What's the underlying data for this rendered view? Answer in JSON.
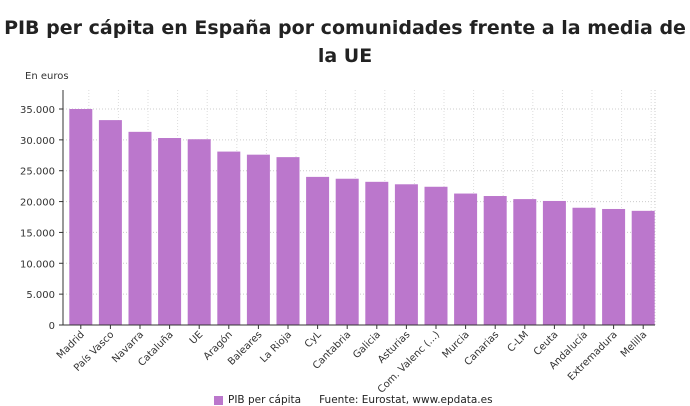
{
  "chart_data": {
    "type": "bar",
    "title": "PIB per cápita en España por comunidades frente a la media de la UE",
    "ylabel": "En euros",
    "xlabel": "",
    "ylim": [
      0,
      35000
    ],
    "yticks": [
      0,
      5000,
      10000,
      15000,
      20000,
      25000,
      30000,
      35000
    ],
    "ytick_labels": [
      "0",
      "5.000",
      "10.000",
      "15.000",
      "20.000",
      "25.000",
      "30.000",
      "35.000"
    ],
    "grid": true,
    "legend_placement": "bottom",
    "categories": [
      "Madrid",
      "País Vasco",
      "Navarra",
      "Cataluña",
      "UE",
      "Aragón",
      "Baleares",
      "La Rioja",
      "CyL",
      "Cantabria",
      "Galicia",
      "Asturias",
      "Com. Valenc (...)",
      "Murcia",
      "Canarias",
      "C-LM",
      "Ceuta",
      "Andalucía",
      "Extremadura",
      "Melilla"
    ],
    "series": [
      {
        "name": "PIB per cápita",
        "color": "#bb77cc",
        "values": [
          35000,
          33200,
          31300,
          30300,
          30100,
          28100,
          27600,
          27200,
          24000,
          23700,
          23200,
          22800,
          22400,
          21300,
          20900,
          20400,
          20100,
          19000,
          18800,
          18500
        ]
      }
    ]
  },
  "source": "Fuente: Eurostat, www.epdata.es"
}
